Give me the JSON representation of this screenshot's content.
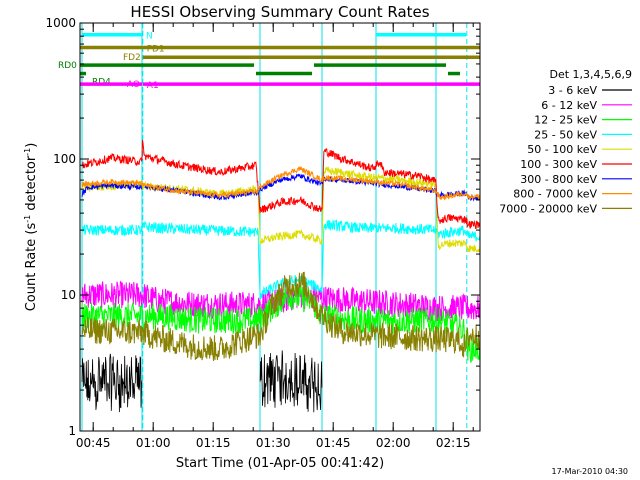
{
  "chart_data": {
    "type": "line",
    "title": "HESSI Observing Summary Count Rates",
    "xlabel": "Start Time (01-Apr-05 00:41:42)",
    "ylabel_main": "Count Rate (s",
    "ylabel_sup1": "-1",
    "ylabel_mid": " detector",
    "ylabel_sup2": "-1",
    "ylabel_end": ")",
    "x_unit": "minutes after 00:41:42",
    "x_range": [
      0,
      100
    ],
    "y_scale": "log",
    "y_range": [
      1,
      1000
    ],
    "x_ticks": [
      {
        "label": "00:45",
        "x": 3.3
      },
      {
        "label": "01:00",
        "x": 18.3
      },
      {
        "label": "01:15",
        "x": 33.3
      },
      {
        "label": "01:30",
        "x": 48.3
      },
      {
        "label": "01:45",
        "x": 63.3
      },
      {
        "label": "02:00",
        "x": 78.3
      },
      {
        "label": "02:15",
        "x": 93.3
      }
    ],
    "y_ticks": [
      {
        "label": "1",
        "y": 1
      },
      {
        "label": "10",
        "y": 10
      },
      {
        "label": "100",
        "y": 100
      },
      {
        "label": "1000",
        "y": 1000
      }
    ],
    "legend_title": "Det 1,3,4,5,6,9",
    "legend_position": "right",
    "night_boundaries": [
      0.5,
      15.5,
      45.0,
      60.5,
      74.0,
      89.0
    ],
    "saa_boundaries": [
      15.7,
      96.7
    ],
    "flags": [
      {
        "label": "N",
        "color": "#00ffff",
        "y": 820,
        "segments": [
          [
            0.5,
            15.5
          ],
          [
            74.0,
            96.5
          ]
        ]
      },
      {
        "label": "FD1",
        "color": "#888000",
        "y": 660,
        "segments": [
          [
            0,
            100
          ]
        ]
      },
      {
        "label": "FD2",
        "color": "#888000",
        "y": 560,
        "segments": [
          [
            15.7,
            100
          ]
        ]
      },
      {
        "label": "RD0",
        "color": "#008000",
        "y": 490,
        "segments": [
          [
            0,
            43.5
          ],
          [
            58.5,
            91.5
          ]
        ]
      },
      {
        "label": "RD4",
        "color": "#008000",
        "y": 425,
        "segments": [
          [
            0,
            1.5
          ],
          [
            44,
            58
          ],
          [
            92,
            95
          ]
        ]
      },
      {
        "label": "AO",
        "color": "#ff00ff",
        "y": 355,
        "segments": [
          [
            0,
            15.5
          ]
        ]
      },
      {
        "label": "A1",
        "color": "#ff00ff",
        "y": 355,
        "segments": [
          [
            15.7,
            100
          ]
        ]
      }
    ],
    "series": [
      {
        "name": "3 - 6 keV",
        "color": "#000000",
        "gaps": [
          [
            15.5,
            45.0
          ],
          [
            60.5,
            100
          ]
        ],
        "points": [
          [
            0.5,
            1.8
          ],
          [
            5,
            2.0
          ],
          [
            10,
            1.9
          ],
          [
            15.5,
            1.9
          ],
          [
            45,
            2.0
          ],
          [
            52,
            2.1
          ],
          [
            60.5,
            1.8
          ]
        ],
        "noise": 0.9
      },
      {
        "name": "6 - 12 keV",
        "color": "#ff00ff",
        "gaps": [],
        "points": [
          [
            0.5,
            10
          ],
          [
            15.5,
            10
          ],
          [
            20,
            9
          ],
          [
            30,
            8.5
          ],
          [
            45,
            8.5
          ],
          [
            50,
            9
          ],
          [
            55,
            10
          ],
          [
            60,
            9.5
          ],
          [
            70,
            9
          ],
          [
            80,
            8.5
          ],
          [
            90,
            8
          ],
          [
            100,
            8
          ]
        ],
        "noise": 0.1
      },
      {
        "name": "12 - 25 keV",
        "color": "#00ff00",
        "gaps": [],
        "points": [
          [
            0.5,
            7
          ],
          [
            15.5,
            7
          ],
          [
            20,
            7
          ],
          [
            30,
            6.5
          ],
          [
            44,
            6.5
          ],
          [
            47,
            7.5
          ],
          [
            52,
            10
          ],
          [
            58,
            9
          ],
          [
            60.5,
            7
          ],
          [
            70,
            6.5
          ],
          [
            80,
            6.5
          ],
          [
            90,
            6.5
          ],
          [
            96,
            5.5
          ],
          [
            97,
            4
          ],
          [
            100,
            4
          ]
        ],
        "noise": 0.1
      },
      {
        "name": "25 - 50 keV",
        "color": "#00ffff",
        "gaps": [],
        "points": [
          [
            0.5,
            30
          ],
          [
            15.5,
            30
          ],
          [
            16,
            32
          ],
          [
            20,
            31
          ],
          [
            30,
            30
          ],
          [
            44.5,
            29
          ],
          [
            45,
            10
          ],
          [
            50,
            12
          ],
          [
            55,
            13
          ],
          [
            60.5,
            11
          ],
          [
            61,
            33
          ],
          [
            70,
            31
          ],
          [
            80,
            31
          ],
          [
            89,
            30
          ],
          [
            89.5,
            28
          ],
          [
            96,
            30
          ],
          [
            97,
            27
          ],
          [
            100,
            27
          ]
        ],
        "noise": 0.04
      },
      {
        "name": "50 - 100 keV",
        "color": "#dddd00",
        "gaps": [],
        "points": [
          [
            0.5,
            62
          ],
          [
            15.5,
            65
          ],
          [
            16,
            63
          ],
          [
            25,
            60
          ],
          [
            35,
            55
          ],
          [
            44.5,
            60
          ],
          [
            45,
            25
          ],
          [
            50,
            27
          ],
          [
            55,
            28
          ],
          [
            60.5,
            25
          ],
          [
            61,
            82
          ],
          [
            65,
            80
          ],
          [
            70,
            75
          ],
          [
            80,
            70
          ],
          [
            89,
            65
          ],
          [
            89.5,
            23
          ],
          [
            92,
            24
          ],
          [
            96.5,
            24
          ],
          [
            97,
            22
          ],
          [
            100,
            22
          ]
        ],
        "noise": 0.03
      },
      {
        "name": "100 - 300 keV",
        "color": "#ff0000",
        "gaps": [],
        "points": [
          [
            0.5,
            90
          ],
          [
            8,
            102
          ],
          [
            15.5,
            95
          ],
          [
            15.6,
            150
          ],
          [
            16,
            105
          ],
          [
            25,
            90
          ],
          [
            35,
            80
          ],
          [
            44,
            90
          ],
          [
            45,
            42
          ],
          [
            50,
            48
          ],
          [
            55,
            50
          ],
          [
            60.5,
            42
          ],
          [
            61,
            115
          ],
          [
            65,
            102
          ],
          [
            73,
            85
          ],
          [
            75,
            95
          ],
          [
            76,
            80
          ],
          [
            85,
            75
          ],
          [
            89,
            68
          ],
          [
            89.5,
            35
          ],
          [
            92,
            37
          ],
          [
            96.5,
            36
          ],
          [
            97,
            33
          ],
          [
            100,
            33
          ]
        ],
        "noise": 0.03
      },
      {
        "name": "300 - 800 keV",
        "color": "#0000ff",
        "gaps": [
          [
            15.6,
            16.1
          ]
        ],
        "points": [
          [
            0.5,
            55
          ],
          [
            1.2,
            58
          ],
          [
            2,
            62
          ],
          [
            8,
            64
          ],
          [
            15.5,
            62
          ],
          [
            16,
            63
          ],
          [
            25,
            58
          ],
          [
            35,
            52
          ],
          [
            44.5,
            57
          ],
          [
            45,
            60
          ],
          [
            50,
            70
          ],
          [
            55,
            75
          ],
          [
            60.5,
            65
          ],
          [
            61,
            72
          ],
          [
            70,
            68
          ],
          [
            80,
            63
          ],
          [
            89,
            58
          ],
          [
            89.5,
            54
          ],
          [
            96.5,
            56
          ],
          [
            97,
            52
          ],
          [
            100,
            52
          ]
        ],
        "noise": 0.02
      },
      {
        "name": "800 - 7000 keV",
        "color": "#ff8c00",
        "gaps": [],
        "points": [
          [
            0.5,
            65
          ],
          [
            8,
            68
          ],
          [
            15.5,
            66
          ],
          [
            16,
            64
          ],
          [
            25,
            58
          ],
          [
            35,
            54
          ],
          [
            44.5,
            58
          ],
          [
            45,
            62
          ],
          [
            50,
            75
          ],
          [
            55,
            85
          ],
          [
            60.5,
            70
          ],
          [
            61,
            73
          ],
          [
            70,
            70
          ],
          [
            80,
            65
          ],
          [
            89,
            58
          ],
          [
            90,
            52
          ],
          [
            96.5,
            56
          ],
          [
            97,
            53
          ],
          [
            100,
            53
          ]
        ],
        "noise": 0.02
      },
      {
        "name": "7000 - 20000 keV",
        "color": "#888000",
        "gaps": [],
        "points": [
          [
            0.5,
            5.5
          ],
          [
            15.5,
            5.3
          ],
          [
            20,
            4.8
          ],
          [
            28,
            4.2
          ],
          [
            35,
            4.0
          ],
          [
            40,
            4.6
          ],
          [
            44,
            5.0
          ],
          [
            45,
            5.0
          ],
          [
            48,
            8.5
          ],
          [
            52,
            12
          ],
          [
            56,
            12
          ],
          [
            60.5,
            7
          ],
          [
            65,
            5.5
          ],
          [
            75,
            5.0
          ],
          [
            85,
            4.8
          ],
          [
            95,
            4.6
          ],
          [
            96.5,
            4.0
          ],
          [
            97,
            5.0
          ],
          [
            100,
            5.0
          ]
        ],
        "noise": 0.1
      }
    ],
    "timestamp": "17-Mar-2010 04:30"
  }
}
